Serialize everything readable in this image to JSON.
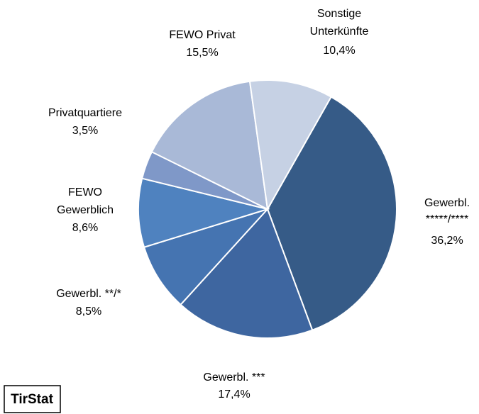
{
  "chart_data": {
    "type": "pie",
    "categories": [
      [
        "Gewerbl.",
        "*****/****"
      ],
      [
        "Gewerbl. ***"
      ],
      [
        "Gewerbl. **/*"
      ],
      [
        "FEWO",
        "Gewerblich"
      ],
      [
        "Privatquartiere"
      ],
      [
        "FEWO Privat"
      ],
      [
        "Sonstige",
        "Unterkünfte"
      ]
    ],
    "values": [
      36.2,
      17.4,
      8.5,
      8.6,
      3.5,
      15.5,
      10.4
    ],
    "value_labels": [
      "36,2%",
      "17,4%",
      "8,5%",
      "8,6%",
      "3,5%",
      "15,5%",
      "10,4%"
    ],
    "colors": [
      "#365b87",
      "#3e66a0",
      "#4574b1",
      "#4f82bf",
      "#7f98c8",
      "#a9b9d7",
      "#c6d1e4"
    ],
    "source": "TirStat"
  }
}
